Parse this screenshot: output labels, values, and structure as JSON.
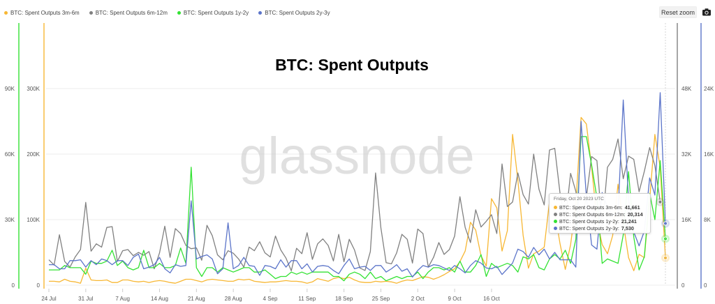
{
  "header": {
    "legend": [
      {
        "label": "BTC: Spent Outputs 3m-6m",
        "color": "#F7B733"
      },
      {
        "label": "BTC: Spent Outputs 6m-12m",
        "color": "#808080"
      },
      {
        "label": "BTC: Spent Outputs 1y-2y",
        "color": "#33E233"
      },
      {
        "label": "BTC: Spent Outputs 2y-3y",
        "color": "#5B74C9"
      }
    ],
    "reset_zoom_label": "Reset zoom",
    "camera_icon": "camera-icon"
  },
  "watermark": "glassnode",
  "tooltip": {
    "date": "Friday, Oct 20 2023 UTC",
    "rows": [
      {
        "label": "BTC: Spent Outputs 3m-6m:",
        "value": "41,661",
        "color": "#F7B733"
      },
      {
        "label": "BTC: Spent Outputs 6m-12m:",
        "value": "20,314",
        "color": "#808080"
      },
      {
        "label": "BTC: Spent Outputs 1y-2y:",
        "value": "21,241",
        "color": "#33E233"
      },
      {
        "label": "BTC: Spent Outputs 2y-3y:",
        "value": "7,530",
        "color": "#5B74C9"
      }
    ]
  },
  "chart_data": {
    "type": "line",
    "title": "BTC: Spent Outputs",
    "x_tick_labels": [
      "24 Jul",
      "31 Jul",
      "7 Aug",
      "14 Aug",
      "21 Aug",
      "28 Aug",
      "4 Sep",
      "11 Sep",
      "18 Sep",
      "25 Sep",
      "2 Oct",
      "9 Oct",
      "16 Oct"
    ],
    "x_start": "2023-07-24",
    "x_end": "2023-10-21",
    "axes": [
      {
        "id": "1y-2y",
        "position": "left-outer",
        "color": "#33E233",
        "min": 0,
        "max": 90000,
        "ticks": [
          0,
          30000,
          60000,
          90000
        ],
        "tick_labels": [
          "0",
          "30K",
          "60K",
          "90K"
        ]
      },
      {
        "id": "3m-6m",
        "position": "left-inner",
        "color": "#F7B733",
        "min": 0,
        "max": 300000,
        "ticks": [
          0,
          100000,
          200000,
          300000
        ],
        "tick_labels": [
          "0",
          "100K",
          "200K",
          "300K"
        ]
      },
      {
        "id": "6m-12m",
        "position": "right-inner",
        "color": "#808080",
        "min": 0,
        "max": 48000,
        "ticks": [
          0,
          16000,
          32000,
          48000
        ],
        "tick_labels": [
          "0",
          "16K",
          "32K",
          "48K"
        ]
      },
      {
        "id": "2y-3y",
        "position": "right-outer",
        "color": "#5B74C9",
        "min": 0,
        "max": 24000,
        "ticks": [
          0,
          8000,
          16000,
          24000
        ],
        "tick_labels": [
          "0",
          "8K",
          "16K",
          "24K"
        ]
      }
    ],
    "series": [
      {
        "name": "BTC: Spent Outputs 3m-6m",
        "axis": "3m-6m",
        "color": "#F7B733",
        "values": [
          6000,
          6000,
          5000,
          9000,
          6000,
          5000,
          3000,
          26000,
          8000,
          7000,
          7000,
          8000,
          4000,
          4000,
          8000,
          8000,
          6000,
          5000,
          6000,
          4000,
          6000,
          7000,
          6000,
          4000,
          3000,
          6000,
          9000,
          9000,
          7000,
          5000,
          8000,
          9000,
          8000,
          7000,
          6000,
          6000,
          9000,
          8000,
          9000,
          6000,
          5000,
          4000,
          5000,
          5000,
          6000,
          7000,
          6000,
          6000,
          5000,
          3000,
          5000,
          10000,
          8000,
          6000,
          10000,
          12000,
          10000,
          12000,
          8000,
          5000,
          4000,
          4000,
          6000,
          5000,
          6000,
          5000,
          3000,
          6000,
          8000,
          7000,
          10000,
          13000,
          12000,
          9000,
          12000,
          16000,
          21000,
          25000,
          36000,
          52000,
          96000,
          84000,
          45000,
          29000,
          132000,
          118000,
          52000,
          83000,
          230000,
          160000,
          76000,
          26000,
          48000,
          52000,
          58000,
          128000,
          112000,
          63000,
          24000,
          62000,
          123000,
          256000,
          246000,
          180000,
          100000,
          62000,
          48000,
          76000,
          154000,
          95000,
          42000,
          22000,
          47000,
          42000,
          130000,
          230000,
          180000,
          41661
        ]
      },
      {
        "name": "BTC: Spent Outputs 6m-12m",
        "axis": "6m-12m",
        "color": "#808080",
        "values": [
          6200,
          4900,
          12300,
          5800,
          4400,
          6900,
          8700,
          20200,
          8300,
          10100,
          9300,
          14100,
          14300,
          5800,
          8400,
          8700,
          7200,
          8000,
          7300,
          8200,
          4000,
          7900,
          14400,
          6800,
          13800,
          12600,
          9700,
          8900,
          9100,
          6100,
          14600,
          12100,
          7400,
          6200,
          8400,
          7800,
          6400,
          4400,
          9300,
          8400,
          10600,
          7900,
          6900,
          12000,
          8600,
          6600,
          3500,
          9000,
          7700,
          12800,
          6300,
          10100,
          11300,
          9700,
          5900,
          12400,
          5700,
          11200,
          8600,
          4200,
          3600,
          8200,
          27400,
          14000,
          5500,
          5200,
          7900,
          12400,
          11200,
          5400,
          13700,
          12600,
          4400,
          6800,
          10400,
          7500,
          8700,
          12000,
          21600,
          14100,
          10400,
          18400,
          14200,
          15600,
          17200,
          12600,
          29600,
          19200,
          20300,
          27400,
          22100,
          19800,
          32000,
          23400,
          19600,
          33000,
          33400,
          22400,
          15400,
          27300,
          22900,
          15200,
          21500,
          31400,
          30400,
          14000,
          28800,
          30700,
          35700,
          26000,
          31500,
          30700,
          22800,
          27800,
          33600,
          29200,
          20314
        ]
      },
      {
        "name": "BTC: Spent Outputs 1y-2y",
        "axis": "1y-2y",
        "color": "#33E233",
        "values": [
          7000,
          7000,
          7000,
          9000,
          8000,
          8000,
          8000,
          5000,
          11000,
          10000,
          10000,
          11000,
          16000,
          9000,
          11000,
          8000,
          7000,
          8000,
          16000,
          8000,
          8000,
          10000,
          8000,
          8000,
          9000,
          17000,
          10000,
          54000,
          8000,
          4000,
          8000,
          8000,
          6000,
          8000,
          7000,
          6000,
          7000,
          8000,
          8000,
          6000,
          6000,
          7000,
          5000,
          3000,
          4000,
          4000,
          6000,
          5000,
          6000,
          5000,
          6000,
          6000,
          6000,
          6000,
          4000,
          4000,
          2000,
          5000,
          6000,
          5000,
          3000,
          6000,
          3000,
          4000,
          2000,
          3000,
          4000,
          3000,
          4000,
          4000,
          6000,
          3000,
          6000,
          8000,
          8000,
          7000,
          8000,
          6000,
          11000,
          6000,
          6000,
          9000,
          14000,
          4000,
          10000,
          8000,
          9000,
          10000,
          9000,
          6000,
          13000,
          12000,
          14000,
          8000,
          7000,
          12000,
          14000,
          12000,
          16000,
          10000,
          21000,
          68000,
          68000,
          55000,
          40000,
          10000,
          12000,
          11000,
          10000,
          23000,
          52000,
          22000,
          7000,
          13000,
          42000,
          30000,
          57000,
          21241
        ]
      },
      {
        "name": "BTC: Spent Outputs 2y-3y",
        "axis": "2y-3y",
        "color": "#5B74C9",
        "values": [
          2500,
          2500,
          2000,
          2000,
          3000,
          3000,
          3100,
          2200,
          3000,
          2500,
          3200,
          3000,
          2500,
          3000,
          3000,
          2400,
          3400,
          3800,
          2000,
          2200,
          2500,
          3400,
          2000,
          1500,
          2500,
          2300,
          2400,
          10300,
          3200,
          3500,
          3700,
          3200,
          1400,
          2000,
          7600,
          2000,
          2400,
          3400,
          2400,
          2300,
          1200,
          2400,
          2300,
          2000,
          3100,
          2200,
          3000,
          3000,
          2000,
          2600,
          1600,
          2300,
          2400,
          2300,
          1800,
          1400,
          2400,
          3200,
          2000,
          2200,
          2300,
          1800,
          2400,
          2400,
          1600,
          2000,
          2500,
          1700,
          2000,
          1000,
          1800,
          2400,
          2200,
          2500,
          2400,
          2100,
          1800,
          2400,
          2000,
          1500,
          2400,
          3000,
          2700,
          2100,
          2000,
          2300,
          1300,
          2000,
          2700,
          4400,
          4100,
          3400,
          4600,
          3700,
          4400,
          3200,
          4000,
          3100,
          3100,
          3100,
          2200,
          20000,
          10800,
          4900,
          4400,
          11300,
          9500,
          8500,
          8800,
          22600,
          10400,
          6500,
          4800,
          6600,
          13100,
          11000,
          23500,
          7530
        ]
      }
    ]
  }
}
